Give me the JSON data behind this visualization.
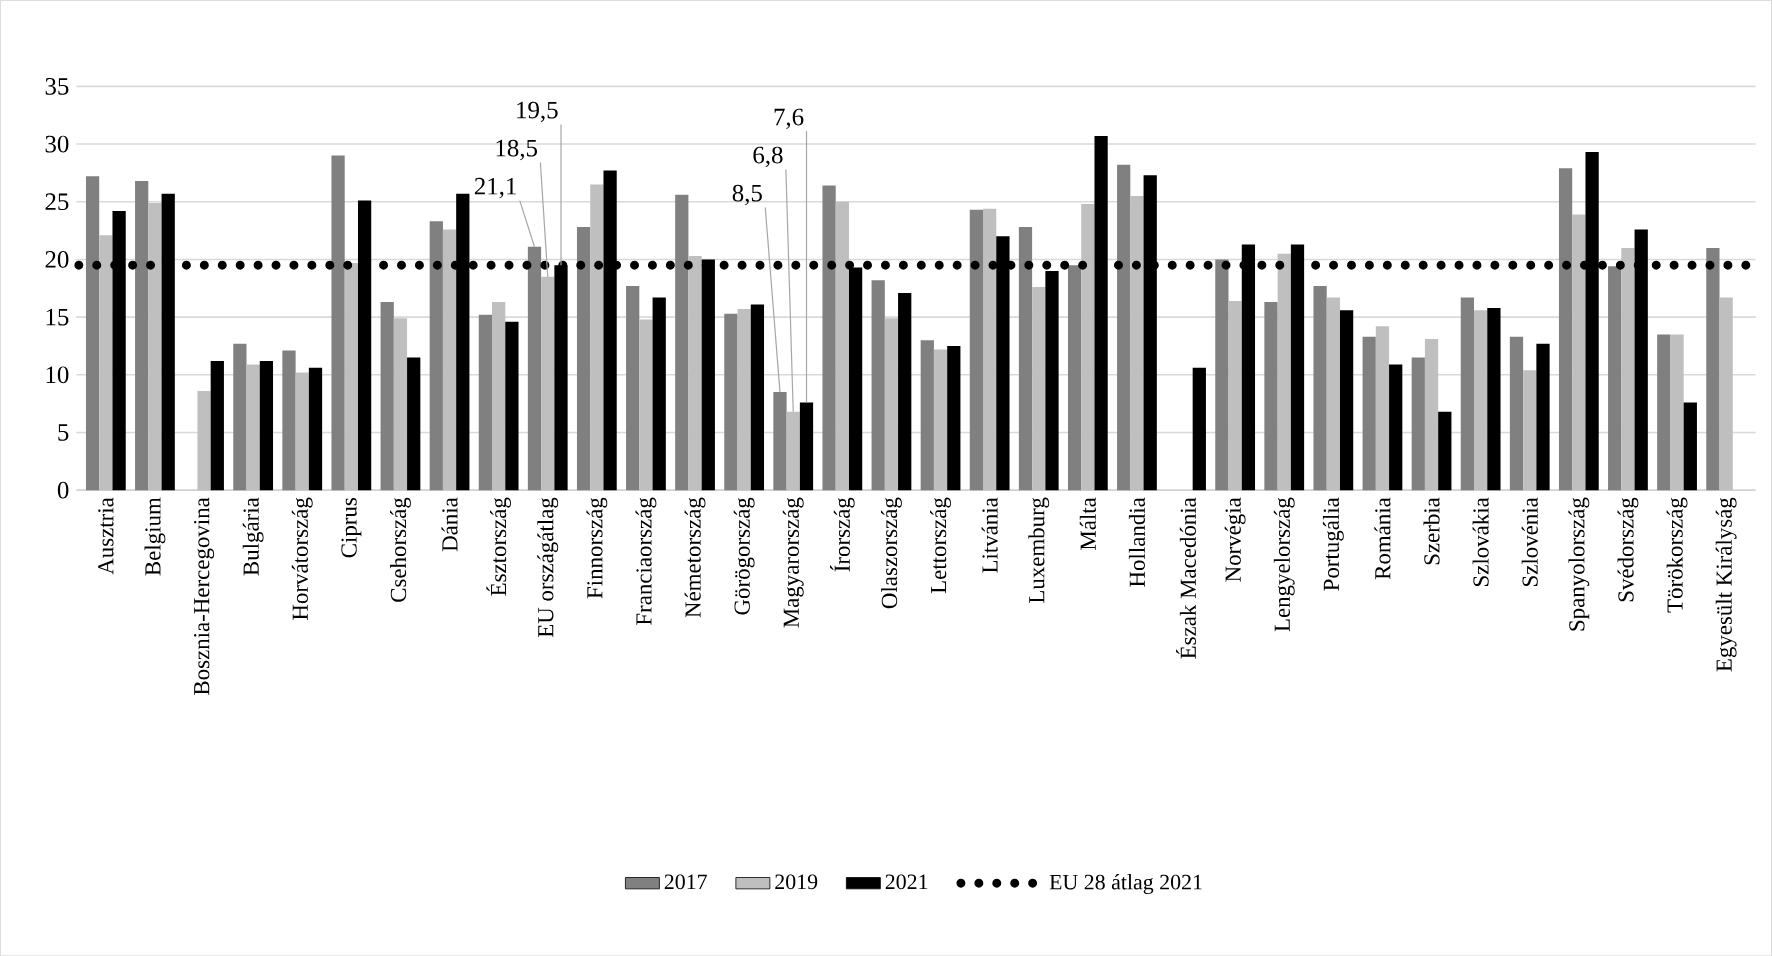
{
  "chart_data": {
    "type": "bar",
    "categories": [
      "Ausztria",
      "Belgium",
      "Bosznia-Hercegovina",
      "Bulgária",
      "Horvátország",
      "Ciprus",
      "Csehország",
      "Dánia",
      "Észtország",
      "EU országátlag",
      "Finnország",
      "Franciaország",
      "Németország",
      "Görögország",
      "Magyarország",
      "Írország",
      "Olaszország",
      "Lettország",
      "Litvánia",
      "Luxemburg",
      "Málta",
      "Hollandia",
      "Észak Macedónia",
      "Norvégia",
      "Lengyelország",
      "Portugália",
      "Románia",
      "Szerbia",
      "Szlovákia",
      "Szlovénia",
      "Spanyolország",
      "Svédország",
      "Törökország",
      "Egyesült Királyság"
    ],
    "series": [
      {
        "name": "2017",
        "color": "#808080",
        "values": [
          27.2,
          26.8,
          null,
          12.7,
          12.1,
          29.0,
          16.3,
          23.3,
          15.2,
          21.1,
          22.8,
          17.7,
          25.6,
          15.3,
          8.5,
          26.4,
          18.2,
          13.0,
          24.3,
          22.8,
          19.5,
          28.2,
          null,
          20.0,
          16.3,
          17.7,
          13.3,
          11.5,
          16.7,
          13.3,
          27.9,
          19.4,
          13.5,
          21.0
        ],
        "value_labels": [
          null,
          null,
          null,
          null,
          null,
          null,
          null,
          null,
          null,
          "21,1",
          null,
          null,
          null,
          null,
          "8,5",
          null,
          null,
          null,
          null,
          null,
          null,
          null,
          null,
          null,
          null,
          null,
          null,
          null,
          null,
          null,
          null,
          null,
          null,
          null
        ]
      },
      {
        "name": "2019",
        "color": "#bfbfbf",
        "values": [
          22.1,
          24.9,
          8.6,
          10.9,
          10.2,
          19.7,
          14.9,
          22.6,
          16.3,
          18.5,
          26.5,
          14.8,
          20.3,
          15.7,
          6.8,
          25.0,
          14.9,
          12.2,
          24.4,
          17.6,
          24.8,
          25.5,
          null,
          16.4,
          20.5,
          16.7,
          14.2,
          13.1,
          15.6,
          10.4,
          23.9,
          21.0,
          13.5,
          16.7
        ],
        "value_labels": [
          null,
          null,
          null,
          null,
          null,
          null,
          null,
          null,
          null,
          "18,5",
          null,
          null,
          null,
          null,
          "6,8",
          null,
          null,
          null,
          null,
          null,
          null,
          null,
          null,
          null,
          null,
          null,
          null,
          null,
          null,
          null,
          null,
          null,
          null,
          null
        ]
      },
      {
        "name": "2021",
        "color": "#000000",
        "values": [
          24.2,
          25.7,
          11.2,
          11.2,
          10.6,
          25.1,
          11.5,
          25.7,
          14.6,
          19.5,
          27.7,
          16.7,
          20.0,
          16.1,
          7.6,
          19.3,
          17.1,
          12.5,
          22.0,
          19.0,
          30.7,
          27.3,
          10.6,
          21.3,
          21.3,
          15.6,
          10.9,
          6.8,
          15.8,
          12.7,
          29.3,
          22.6,
          7.6,
          null
        ],
        "value_labels": [
          null,
          null,
          null,
          null,
          null,
          null,
          null,
          null,
          null,
          "19,5",
          null,
          null,
          null,
          null,
          "7,6",
          null,
          null,
          null,
          null,
          null,
          null,
          null,
          null,
          null,
          null,
          null,
          null,
          null,
          null,
          null,
          null,
          null,
          null,
          null
        ]
      }
    ],
    "ref_lines": [
      {
        "axis": "y",
        "value": 19.5,
        "label": "EU 28 átlag 2021",
        "color": "#000000",
        "line_style": "dotted"
      }
    ],
    "ylim": [
      0,
      35
    ],
    "yticks": [
      0,
      5,
      10,
      15,
      20,
      25,
      30,
      35
    ],
    "grid": "y",
    "legend": "bottom"
  }
}
